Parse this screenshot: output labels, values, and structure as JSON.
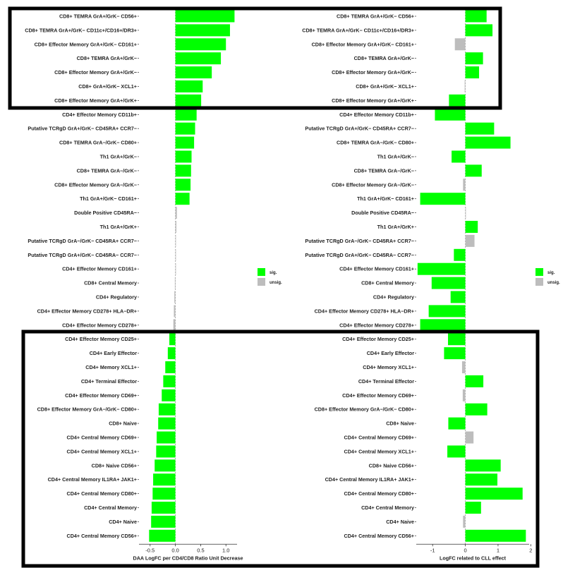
{
  "chart_data": [
    {
      "type": "bar",
      "orientation": "horizontal",
      "panel": "left",
      "xlabel": "DAA LogFC per CD4/CD8 Ratio Unit Decrease",
      "xlim": [
        -0.72,
        1.22
      ],
      "xticks": [
        -0.5,
        0.0,
        0.5,
        1.0
      ],
      "xtick_labels": [
        "-0.5",
        "0.0",
        "0.5",
        "1.0"
      ],
      "legend": {
        "placement": "right",
        "entries": [
          "sig.",
          "unsig."
        ]
      },
      "categories": [
        "CD8+ TEMRA GrA+/GrK− CD56+",
        "CD8+ TEMRA GrA+/GrK− CD11c+/CD16+/DR3+",
        "CD8+ Effector Memory GrA+/GrK− CD161+",
        "CD8+ TEMRA GrA+/GrK−",
        "CD8+ Effector Memory GrA+/GrK−",
        "CD8+ GrA+/GrK− XCL1+",
        "CD8+ Effector Memory GrA+/GrK+",
        "CD4+ Effector Memory CD11b+",
        "Putative TCRgD GrA+/GrK− CD45RA+ CCR7−",
        "CD8+ TEMRA GrA−/GrK− CD80+",
        "Th1 GrA+/GrK−",
        "CD8+ TEMRA GrA−/GrK−",
        "CD8+ Effector Memory GrA−/GrK−",
        "Th1 GrA+/GrK− CD161+",
        "Double Positive CD45RA−",
        "Th1 GrA+/GrK+",
        "Putative TCRgD GrA−/GrK− CD45RA+ CCR7−",
        "Putative TCRgD GrA+/GrK− CD45RA− CCR7−",
        "CD4+ Effector Memory CD161+",
        "CD8+ Central Memory",
        "CD4+ Regulatory",
        "CD4+ Effector Memory CD278+ HLA−DR+",
        "CD4+ Effector Memory CD278+",
        "CD4+ Effector Memory CD25+",
        "CD4+ Early Effector",
        "CD4+ Memory XCL1+",
        "CD4+ Terminal Effector",
        "CD4+ Effector Memory CD69+",
        "CD8+ Effector Memory GrA−/GrK− CD80+",
        "CD8+ Naive",
        "CD4+ Central Memory CD69+",
        "CD4+ Central Memory XCL1+",
        "CD8+ Naive CD56+",
        "CD4+ Central Memory IL1RA+ JAK1+",
        "CD4+ Central Memory CD80+",
        "CD4+ Central Memory",
        "CD4+ Naive",
        "CD4+ Central Memory CD56+"
      ],
      "values": [
        1.17,
        1.08,
        1.0,
        0.9,
        0.72,
        0.54,
        0.51,
        0.42,
        0.39,
        0.37,
        0.32,
        0.31,
        0.3,
        0.28,
        0.03,
        0.02,
        0.01,
        0.0,
        0.0,
        -0.01,
        -0.02,
        -0.03,
        -0.04,
        -0.12,
        -0.15,
        -0.2,
        -0.24,
        -0.27,
        -0.33,
        -0.34,
        -0.37,
        -0.38,
        -0.41,
        -0.44,
        -0.45,
        -0.47,
        -0.48,
        -0.52
      ],
      "significant": [
        true,
        true,
        true,
        true,
        true,
        true,
        true,
        true,
        true,
        true,
        true,
        true,
        true,
        true,
        false,
        false,
        false,
        false,
        false,
        false,
        false,
        false,
        false,
        true,
        true,
        true,
        true,
        true,
        true,
        true,
        true,
        true,
        true,
        true,
        true,
        true,
        true,
        true
      ]
    },
    {
      "type": "bar",
      "orientation": "horizontal",
      "panel": "right",
      "xlabel": "LogFC related to CLL effect",
      "xlim": [
        -1.5,
        1.95
      ],
      "xticks": [
        -1,
        0,
        1,
        2
      ],
      "xtick_labels": [
        "-1",
        "0",
        "1",
        "2"
      ],
      "legend": {
        "placement": "right",
        "entries": [
          "sig.",
          "unsig."
        ]
      },
      "categories": [
        "CD8+ TEMRA GrA+/GrK− CD56+",
        "CD8+ TEMRA GrA+/GrK− CD11c+/CD16+/DR3+",
        "CD8+ Effector Memory GrA+/GrK− CD161+",
        "CD8+ TEMRA GrA+/GrK−",
        "CD8+ Effector Memory GrA+/GrK−",
        "CD8+ GrA+/GrK− XCL1+",
        "CD8+ Effector Memory GrA+/GrK+",
        "CD4+ Effector Memory CD11b+",
        "Putative TCRgD GrA+/GrK− CD45RA+ CCR7−",
        "CD8+ TEMRA GrA−/GrK− CD80+",
        "Th1 GrA+/GrK−",
        "CD8+ TEMRA GrA−/GrK−",
        "CD8+ Effector Memory GrA−/GrK−",
        "Th1 GrA+/GrK− CD161+",
        "Double Positive CD45RA−",
        "Th1 GrA+/GrK+",
        "Putative TCRgD GrA−/GrK− CD45RA+ CCR7−",
        "Putative TCRgD GrA+/GrK− CD45RA− CCR7−",
        "CD4+ Effector Memory CD161+",
        "CD8+ Central Memory",
        "CD4+ Regulatory",
        "CD4+ Effector Memory CD278+ HLA−DR+",
        "CD4+ Effector Memory CD278+",
        "CD4+ Effector Memory CD25+",
        "CD4+ Early Effector",
        "CD4+ Memory XCL1+",
        "CD4+ Terminal Effector",
        "CD4+ Effector Memory CD69+",
        "CD8+ Effector Memory GrA−/GrK− CD80+",
        "CD8+ Naive",
        "CD4+ Central Memory CD69+",
        "CD4+ Central Memory XCL1+",
        "CD8+ Naive CD56+",
        "CD4+ Central Memory IL1RA+ JAK1+",
        "CD4+ Central Memory CD80+",
        "CD4+ Central Memory",
        "CD4+ Naive",
        "CD4+ Central Memory CD56+"
      ],
      "values": [
        0.65,
        0.83,
        -0.32,
        0.54,
        0.42,
        -0.02,
        -0.5,
        -0.93,
        0.88,
        1.38,
        -0.42,
        0.5,
        -0.07,
        -1.38,
        0.0,
        0.38,
        0.28,
        -0.35,
        -1.46,
        -1.03,
        -0.45,
        -1.12,
        -1.38,
        -0.53,
        -0.65,
        -0.1,
        0.55,
        -0.08,
        0.67,
        -0.52,
        0.25,
        -0.55,
        1.08,
        0.98,
        1.75,
        0.48,
        -0.07,
        1.85
      ],
      "significant": [
        true,
        true,
        false,
        true,
        true,
        false,
        true,
        true,
        true,
        true,
        true,
        true,
        false,
        true,
        false,
        true,
        false,
        true,
        true,
        true,
        true,
        true,
        true,
        true,
        true,
        false,
        true,
        false,
        true,
        true,
        false,
        true,
        true,
        true,
        true,
        true,
        false,
        true
      ]
    }
  ],
  "colors": {
    "sig": "#00ff00",
    "unsig": "#bdbdbd",
    "zero_line": "#999999",
    "highlight_box": "#000000"
  }
}
